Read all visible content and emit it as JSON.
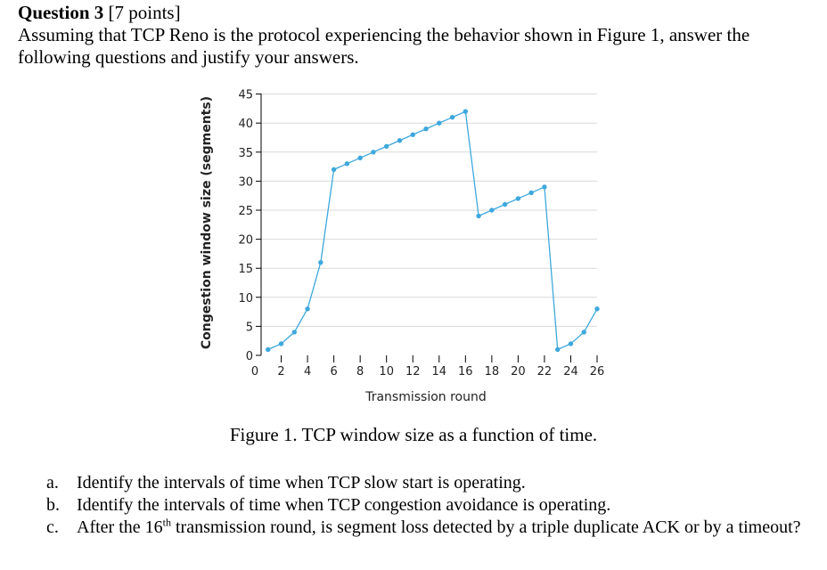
{
  "header": {
    "question_label": "Question 3",
    "points": "[7 points]",
    "intro": "Assuming that TCP Reno is the protocol experiencing the behavior shown in Figure 1, answer the following questions and justify your answers."
  },
  "figure": {
    "caption": "Figure 1. TCP window size as a function of time."
  },
  "chart_data": {
    "type": "line",
    "xlabel": "Transmission round",
    "ylabel": "Congestion window size (segments)",
    "xlim": [
      0,
      26
    ],
    "ylim": [
      0,
      45
    ],
    "x_ticks": [
      0,
      2,
      4,
      6,
      8,
      10,
      12,
      14,
      16,
      18,
      20,
      22,
      24,
      26
    ],
    "y_ticks": [
      0,
      5,
      10,
      15,
      20,
      25,
      30,
      35,
      40,
      45
    ],
    "grid": "horizontal",
    "line_color": "#3ea8dd",
    "points": [
      [
        1,
        1
      ],
      [
        2,
        2
      ],
      [
        3,
        4
      ],
      [
        4,
        8
      ],
      [
        5,
        16
      ],
      [
        6,
        32
      ],
      [
        7,
        33
      ],
      [
        8,
        34
      ],
      [
        9,
        35
      ],
      [
        10,
        36
      ],
      [
        11,
        37
      ],
      [
        12,
        38
      ],
      [
        13,
        39
      ],
      [
        14,
        40
      ],
      [
        15,
        41
      ],
      [
        16,
        42
      ],
      [
        17,
        24
      ],
      [
        18,
        25
      ],
      [
        19,
        26
      ],
      [
        20,
        27
      ],
      [
        21,
        28
      ],
      [
        22,
        29
      ],
      [
        23,
        1
      ],
      [
        24,
        2
      ],
      [
        25,
        4
      ],
      [
        26,
        8
      ]
    ]
  },
  "questions": [
    {
      "label": "a.",
      "text": "Identify the intervals of time when TCP slow start is operating."
    },
    {
      "label": "b.",
      "text": "Identify the intervals of time when TCP congestion avoidance is operating."
    },
    {
      "label": "c.",
      "pre": "After the 16",
      "sup": "th",
      "post": " transmission round, is segment loss detected by a triple duplicate ACK or by a timeout?"
    }
  ]
}
